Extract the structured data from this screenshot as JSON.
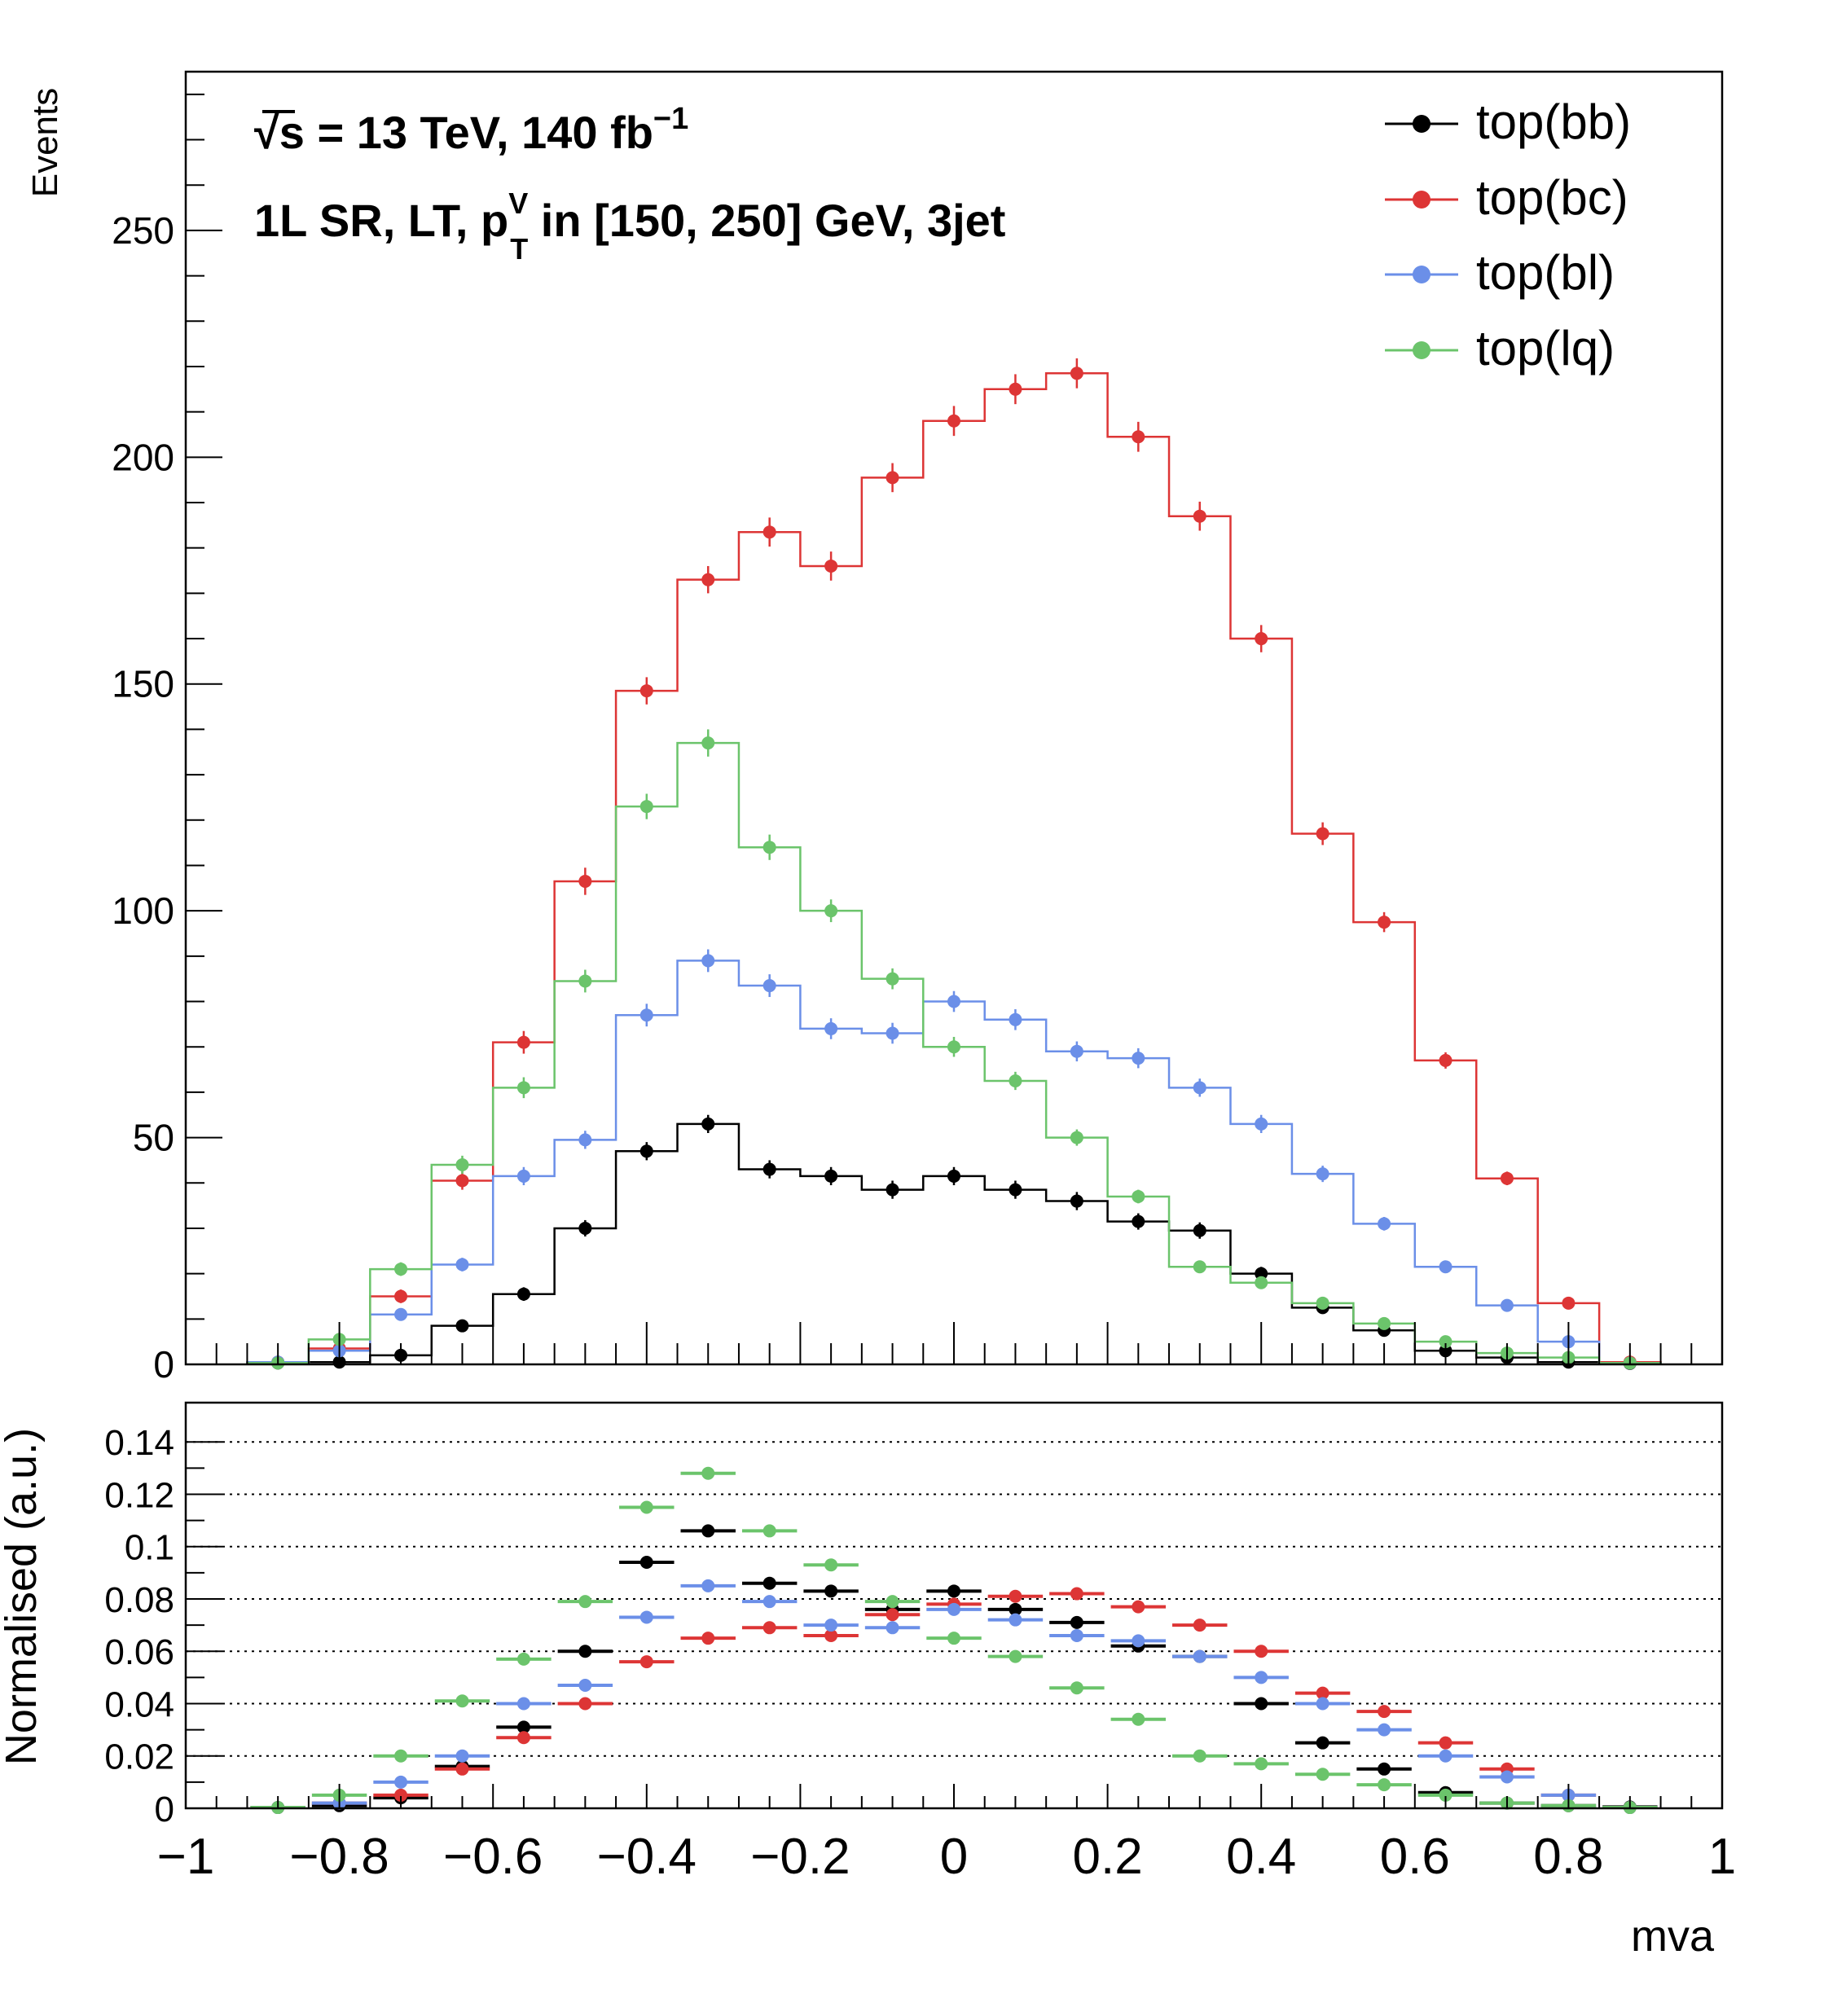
{
  "chart_data": [
    {
      "type": "histogram",
      "title": "√s = 13 TeV,  140 fb⁻¹",
      "subtitle": "1L SR, LT, p_T^V in [150, 250] GeV, 3jet",
      "label_lines": {
        "line1": {
          "sqrt": "√",
          "s": "s = 13 TeV,  140 fb",
          "exp": "−1"
        },
        "line2": {
          "pre": "1L SR, LT, p",
          "sup": "V",
          "sub": "T",
          "post": " in [150, 250] GeV, 3jet"
        }
      },
      "ylabel": "Events",
      "xlim": [
        -1,
        1
      ],
      "ylim": [
        0,
        285
      ],
      "yticks": [
        0,
        50,
        100,
        150,
        200,
        250
      ],
      "ytick_labels": [
        "0",
        "50",
        "100",
        "150",
        "200",
        "250"
      ],
      "grid": false,
      "legend_position": "top-right",
      "bin_edges": [
        -0.92,
        -0.84,
        -0.76,
        -0.68,
        -0.6,
        -0.52,
        -0.44,
        -0.36,
        -0.28,
        -0.2,
        -0.12,
        -0.04,
        0.04,
        0.12,
        0.2,
        0.28,
        0.36,
        0.44,
        0.52,
        0.6,
        0.68,
        0.76,
        0.84,
        0.92
      ],
      "series": [
        {
          "name": "top(bb)",
          "color": "#000000",
          "values": [
            0.3,
            0.5,
            2,
            8.5,
            15.5,
            30,
            47,
            53,
            43,
            41.5,
            38.5,
            41.5,
            38.5,
            36,
            31.5,
            29.5,
            20,
            12.5,
            7.5,
            3,
            1.5,
            0.5,
            0.2
          ],
          "errors": [
            0.3,
            0.5,
            1,
            1.2,
            1.5,
            1.8,
            2,
            2,
            2,
            2,
            2,
            2,
            2,
            2,
            1.8,
            1.8,
            1.5,
            1.2,
            1,
            0.8,
            0.5,
            0.4,
            0.2
          ]
        },
        {
          "name": "top(bc)",
          "color": "#dd3535",
          "values": [
            0.5,
            3.5,
            15,
            40.5,
            71,
            106.5,
            148.5,
            173,
            183.5,
            176,
            195.5,
            208,
            215,
            218.5,
            204.5,
            187,
            160,
            117,
            97.5,
            67,
            41,
            13.5,
            0.5
          ],
          "errors": [
            0.5,
            1,
            1.5,
            2,
            2.5,
            3,
            3,
            3,
            3.2,
            3.2,
            3.2,
            3.3,
            3.3,
            3.3,
            3.3,
            3.2,
            3,
            2.5,
            2.2,
            1.8,
            1.5,
            1,
            0.5
          ]
        },
        {
          "name": "top(bl)",
          "color": "#6b8fe8",
          "values": [
            0.5,
            3,
            11,
            22,
            41.5,
            49.5,
            77,
            89,
            83.5,
            74,
            73,
            80,
            76,
            69,
            67.5,
            61,
            53,
            42,
            31,
            21.5,
            13,
            5,
            0.3
          ],
          "errors": [
            0.5,
            0.8,
            1.2,
            1.5,
            2,
            2,
            2.5,
            2.5,
            2.5,
            2.3,
            2.3,
            2.3,
            2.3,
            2.2,
            2.2,
            2,
            2,
            1.8,
            1.5,
            1.2,
            1,
            0.8,
            0.3
          ]
        },
        {
          "name": "top(lq)",
          "color": "#6bc46b",
          "values": [
            0.3,
            5.5,
            21,
            44,
            61,
            84.5,
            123,
            137,
            114,
            100,
            85,
            70,
            62.5,
            50,
            37,
            21.5,
            18,
            13.5,
            9,
            5,
            2.5,
            1.5,
            0.3
          ],
          "errors": [
            0.3,
            1,
            1.5,
            2,
            2.3,
            2.5,
            2.8,
            3,
            2.8,
            2.5,
            2.3,
            2.2,
            2,
            1.8,
            1.5,
            1.2,
            1.2,
            1,
            0.8,
            0.7,
            0.5,
            0.4,
            0.3
          ]
        }
      ]
    },
    {
      "type": "scatter",
      "xlabel": "mva",
      "ylabel": "Normalised (a.u.)",
      "xlim": [
        -1,
        1
      ],
      "ylim": [
        0,
        0.155
      ],
      "xticks": [
        -1,
        -0.8,
        -0.6,
        -0.4,
        -0.2,
        0,
        0.2,
        0.4,
        0.6,
        0.8,
        1
      ],
      "xtick_labels": [
        "−1",
        "−0.8",
        "−0.6",
        "−0.4",
        "−0.2",
        "0",
        "0.2",
        "0.4",
        "0.6",
        "0.8",
        "1"
      ],
      "yticks": [
        0,
        0.02,
        0.04,
        0.06,
        0.08,
        0.1,
        0.12,
        0.14
      ],
      "ytick_labels": [
        "0",
        "0.02",
        "0.04",
        "0.06",
        "0.08",
        "0.1",
        "0.12",
        "0.14"
      ],
      "grid": "horizontal dotted",
      "bin_edges": [
        -0.92,
        -0.84,
        -0.76,
        -0.68,
        -0.6,
        -0.52,
        -0.44,
        -0.36,
        -0.28,
        -0.2,
        -0.12,
        -0.04,
        0.04,
        0.12,
        0.2,
        0.28,
        0.36,
        0.44,
        0.52,
        0.6,
        0.68,
        0.76,
        0.84,
        0.92
      ],
      "series": [
        {
          "name": "top(bb)",
          "color": "#000000",
          "values": [
            0.0003,
            0.001,
            0.004,
            0.016,
            0.031,
            0.06,
            0.094,
            0.106,
            0.086,
            0.083,
            0.076,
            0.083,
            0.076,
            0.071,
            0.062,
            0.058,
            0.04,
            0.025,
            0.015,
            0.006,
            0.002,
            0.001,
            0.0005
          ]
        },
        {
          "name": "top(bc)",
          "color": "#dd3535",
          "values": [
            0.0003,
            0.002,
            0.005,
            0.015,
            0.027,
            0.04,
            0.056,
            0.065,
            0.069,
            0.066,
            0.074,
            0.078,
            0.081,
            0.082,
            0.077,
            0.07,
            0.06,
            0.044,
            0.037,
            0.025,
            0.015,
            0.005,
            0.0003
          ]
        },
        {
          "name": "top(bl)",
          "color": "#6b8fe8",
          "values": [
            0.0003,
            0.002,
            0.01,
            0.02,
            0.04,
            0.047,
            0.073,
            0.085,
            0.079,
            0.07,
            0.069,
            0.076,
            0.072,
            0.066,
            0.064,
            0.058,
            0.05,
            0.04,
            0.03,
            0.02,
            0.012,
            0.005,
            0.0003
          ]
        },
        {
          "name": "top(lq)",
          "color": "#6bc46b",
          "values": [
            0.0003,
            0.005,
            0.02,
            0.041,
            0.057,
            0.079,
            0.115,
            0.128,
            0.106,
            0.093,
            0.079,
            0.065,
            0.058,
            0.046,
            0.034,
            0.02,
            0.017,
            0.013,
            0.009,
            0.005,
            0.002,
            0.001,
            0.0003
          ]
        }
      ]
    }
  ]
}
